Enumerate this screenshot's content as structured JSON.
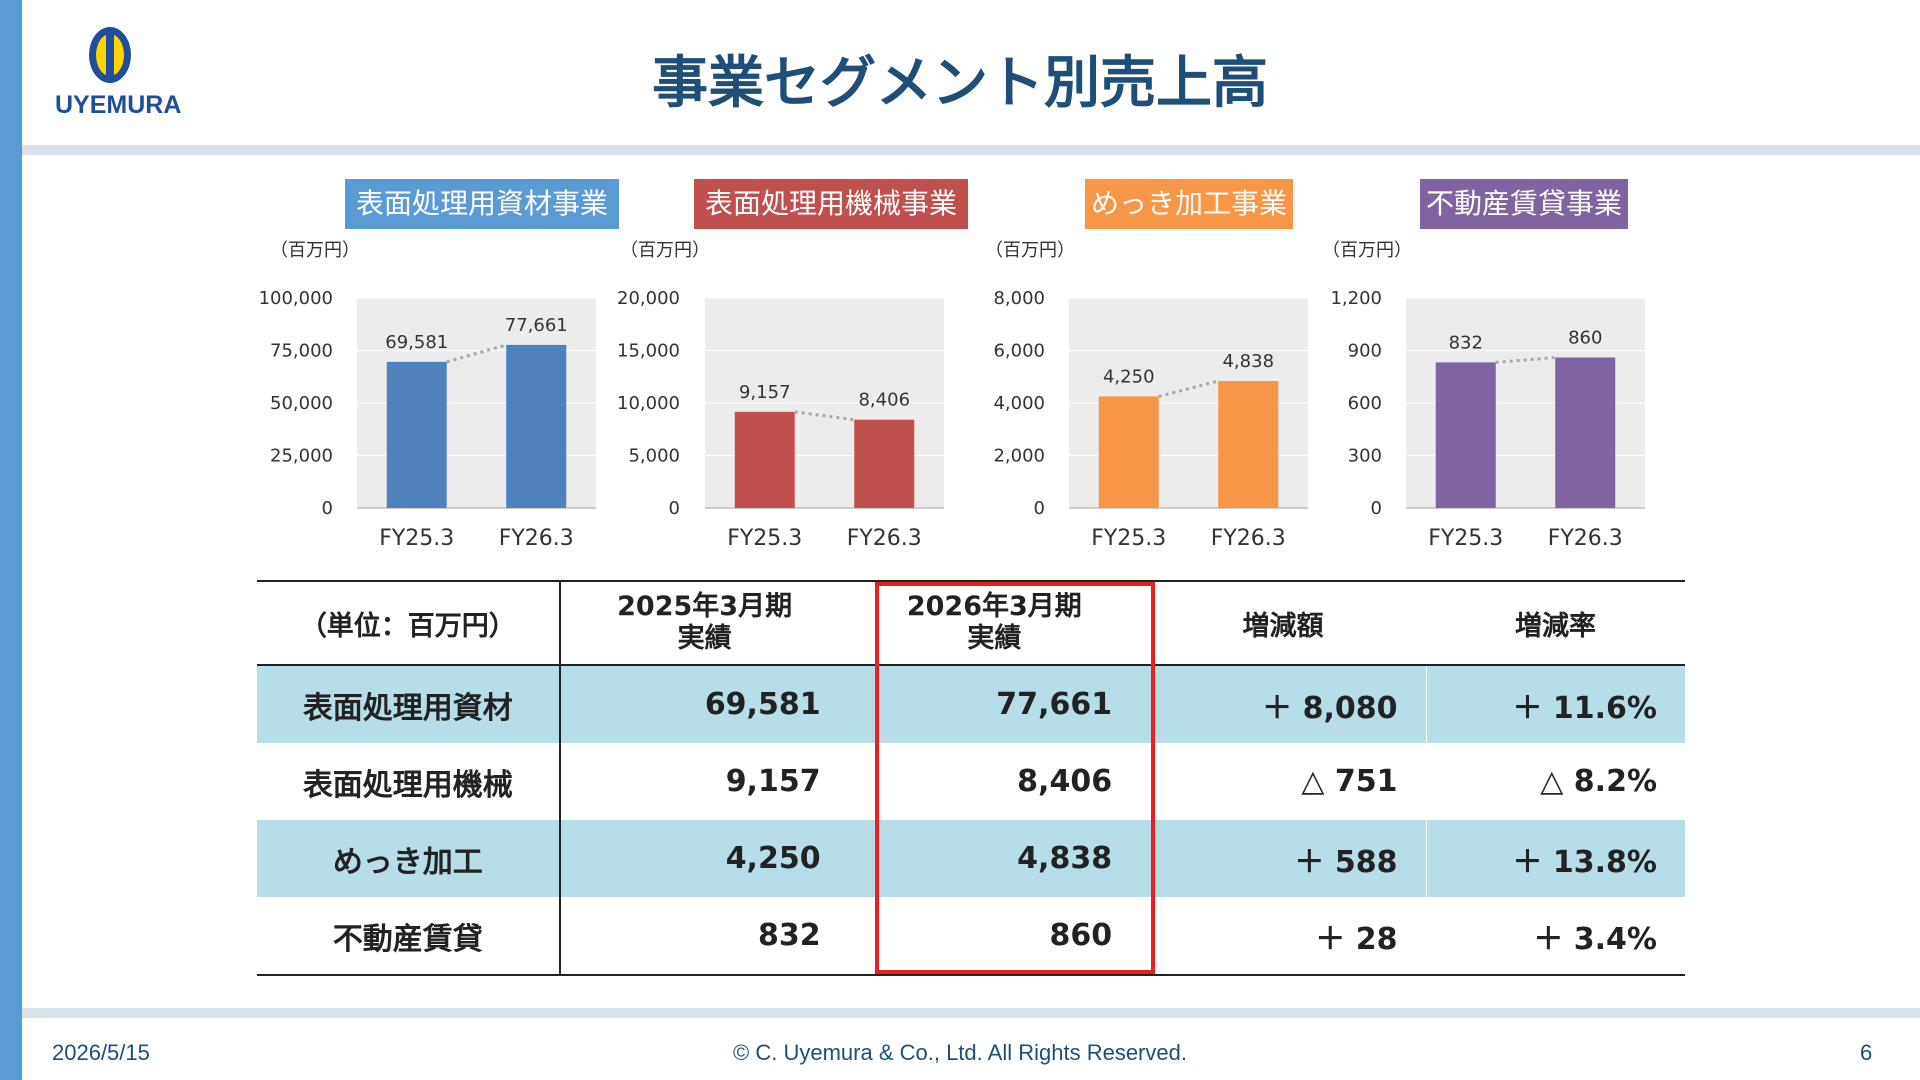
{
  "header": {
    "title": "事業セグメント別売上高",
    "logo_text": "UYEMURA"
  },
  "footer": {
    "date": "2026/5/15",
    "copyright": "© C. Uyemura & Co., Ltd. All Rights Reserved.",
    "page": "6"
  },
  "colors": {
    "accent": "#5b9bd5",
    "title": "#1f4e79",
    "table_blue": "#b7dde8",
    "highlight": "#e82020"
  },
  "chart_data": [
    {
      "type": "bar",
      "title": "表面処理用資材事業",
      "ylabel": "（百万円）",
      "color": "#4f81bd",
      "categories": [
        "FY25.3",
        "FY26.3"
      ],
      "values": [
        69581,
        77661
      ],
      "value_labels": [
        "69,581",
        "77,661"
      ],
      "ylim": [
        0,
        100000
      ],
      "yticks": [
        "0",
        "25,000",
        "50,000",
        "75,000",
        "100,000"
      ]
    },
    {
      "type": "bar",
      "title": "表面処理用機械事業",
      "ylabel": "（百万円）",
      "color": "#c0504d",
      "categories": [
        "FY25.3",
        "FY26.3"
      ],
      "values": [
        9157,
        8406
      ],
      "value_labels": [
        "9,157",
        "8,406"
      ],
      "ylim": [
        0,
        20000
      ],
      "yticks": [
        "0",
        "5,000",
        "10,000",
        "15,000",
        "20,000"
      ]
    },
    {
      "type": "bar",
      "title": "めっき加工事業",
      "ylabel": "（百万円）",
      "color": "#f79646",
      "categories": [
        "FY25.3",
        "FY26.3"
      ],
      "values": [
        4250,
        4838
      ],
      "value_labels": [
        "4,250",
        "4,838"
      ],
      "ylim": [
        0,
        8000
      ],
      "yticks": [
        "0",
        "2,000",
        "4,000",
        "6,000",
        "8,000"
      ]
    },
    {
      "type": "bar",
      "title": "不動産賃貸事業",
      "ylabel": "（百万円）",
      "color": "#8064a2",
      "categories": [
        "FY25.3",
        "FY26.3"
      ],
      "values": [
        832,
        860
      ],
      "value_labels": [
        "832",
        "860"
      ],
      "ylim": [
        0,
        1200
      ],
      "yticks": [
        "0",
        "300",
        "600",
        "900",
        "1,200"
      ]
    }
  ],
  "table": {
    "headers": [
      "（単位：百万円）",
      "2025年3月期\n実績",
      "2026年3月期\n実績",
      "増減額",
      "増減率"
    ],
    "rows": [
      [
        "表面処理用資材",
        "69,581",
        "77,661",
        "＋ 8,080",
        "＋ 11.6%"
      ],
      [
        "表面処理用機械",
        "9,157",
        "8,406",
        "△ 751",
        "△ 8.2%"
      ],
      [
        "めっき加工",
        "4,250",
        "4,838",
        "＋ 588",
        "＋ 13.8%"
      ],
      [
        "不動産賃貸",
        "832",
        "860",
        "＋ 28",
        "＋ 3.4%"
      ]
    ]
  }
}
